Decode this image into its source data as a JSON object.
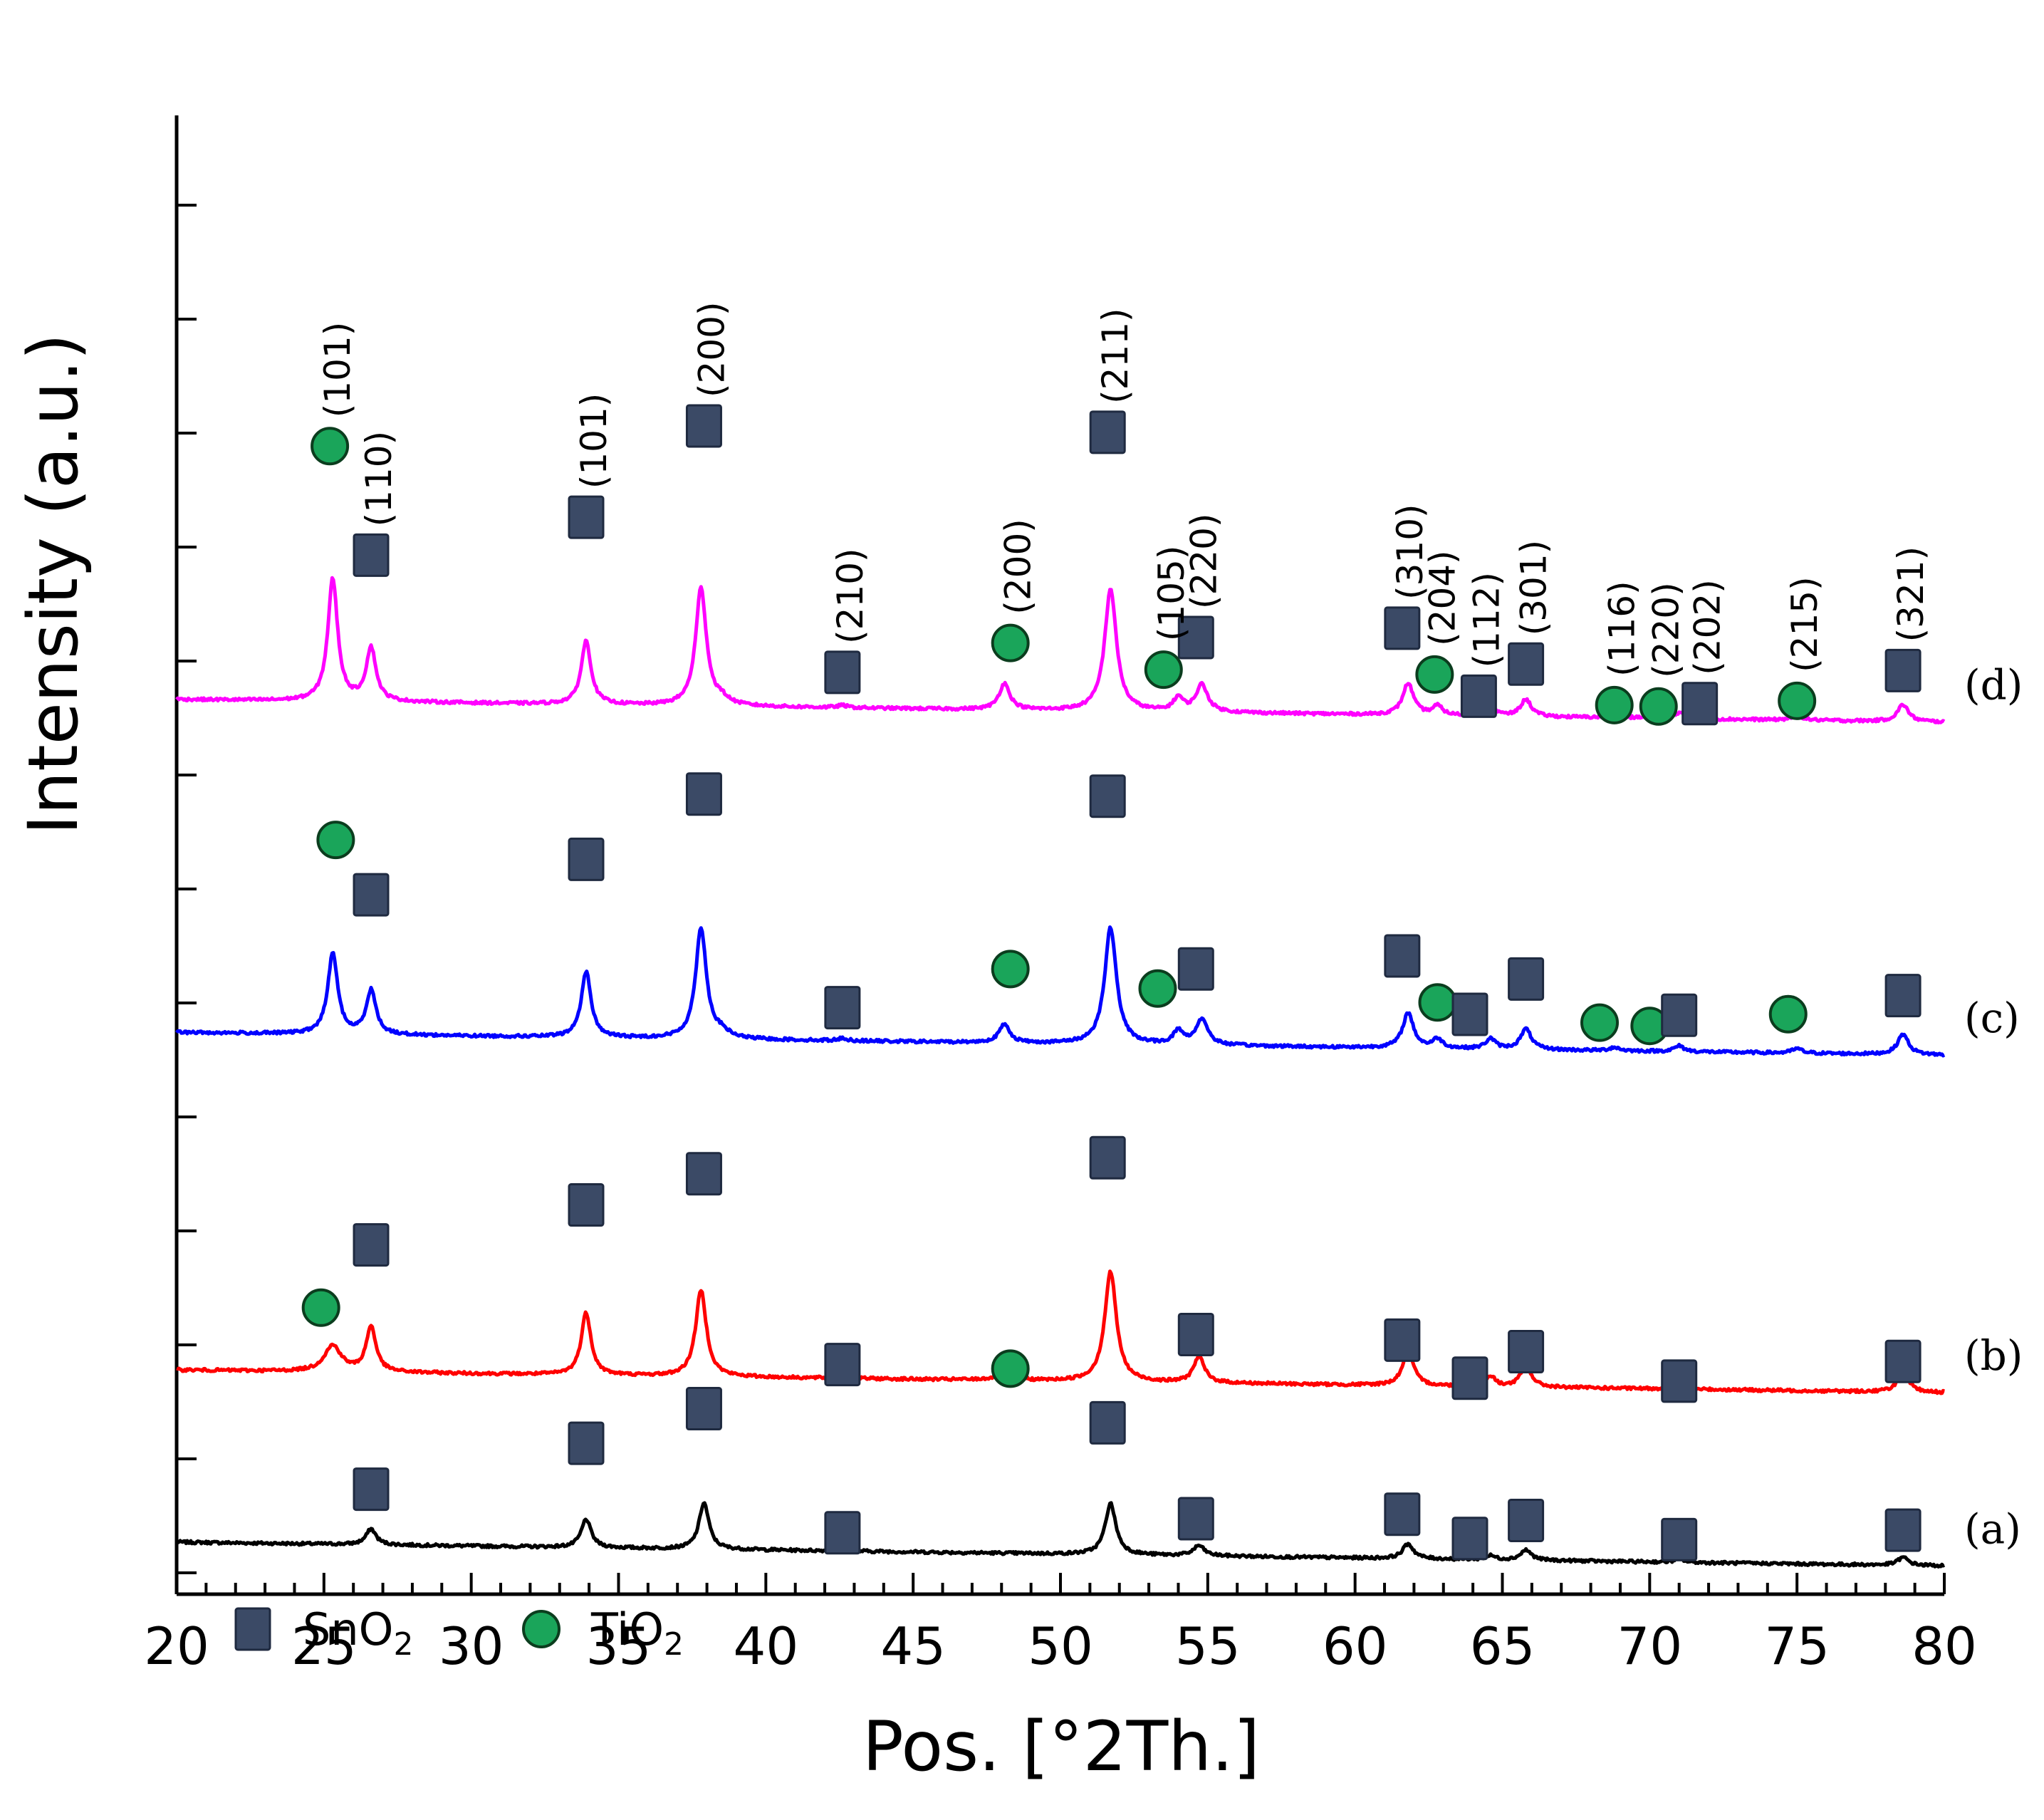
{
  "chart_data": {
    "type": "line",
    "title": "",
    "xlabel": "Pos. [°2Th.]",
    "ylabel": "Intensity (a.u.)",
    "xlim": [
      20,
      80
    ],
    "x_ticks": [
      "20",
      "25",
      "30",
      "35",
      "40",
      "45",
      "50",
      "55",
      "60",
      "65",
      "70",
      "75",
      "80"
    ],
    "y_ticks_major": 13,
    "series": [
      {
        "id": "a",
        "name": "(a)",
        "color": "#000000",
        "baseline_start": 0.3,
        "baseline_end": 0.09,
        "offset": 0.16,
        "peaks": [
          {
            "x": 26.6,
            "h": 0.14,
            "w": 0.2
          },
          {
            "x": 33.9,
            "h": 0.25,
            "w": 0.2
          },
          {
            "x": 37.9,
            "h": 0.41,
            "w": 0.2
          },
          {
            "x": 42.6,
            "h": 0.02,
            "w": 0.2
          },
          {
            "x": 51.7,
            "h": 0.45,
            "w": 0.22
          },
          {
            "x": 54.7,
            "h": 0.09,
            "w": 0.22
          },
          {
            "x": 61.8,
            "h": 0.13,
            "w": 0.22
          },
          {
            "x": 64.6,
            "h": 0.035,
            "w": 0.2
          },
          {
            "x": 65.8,
            "h": 0.09,
            "w": 0.22
          },
          {
            "x": 71.0,
            "h": 0.03,
            "w": 0.2
          },
          {
            "x": 78.6,
            "h": 0.07,
            "w": 0.22
          }
        ],
        "markers": [
          {
            "phase": "SnO2",
            "x": 26.6,
            "dy": 0.35
          },
          {
            "phase": "SnO2",
            "x": 33.9,
            "dy": 0.67
          },
          {
            "phase": "SnO2",
            "x": 37.9,
            "dy": 0.83
          },
          {
            "phase": "SnO2",
            "x": 42.6,
            "dy": 0.14
          },
          {
            "phase": "SnO2",
            "x": 51.6,
            "dy": 0.79
          },
          {
            "phase": "SnO2",
            "x": 54.6,
            "dy": 0.25
          },
          {
            "phase": "SnO2",
            "x": 61.6,
            "dy": 0.32
          },
          {
            "phase": "SnO2",
            "x": 63.9,
            "dy": 0.18
          },
          {
            "phase": "SnO2",
            "x": 65.8,
            "dy": 0.26
          },
          {
            "phase": "SnO2",
            "x": 71.0,
            "dy": 0.17
          },
          {
            "phase": "SnO2",
            "x": 78.6,
            "dy": 0.24
          }
        ]
      },
      {
        "id": "b",
        "name": "(b)",
        "color": "#ff0000",
        "baseline_start": 0.3,
        "baseline_end": 0.1,
        "offset": 1.68,
        "peaks": [
          {
            "x": 25.3,
            "h": 0.23,
            "w": 0.35
          },
          {
            "x": 26.6,
            "h": 0.4,
            "w": 0.2
          },
          {
            "x": 33.9,
            "h": 0.55,
            "w": 0.2
          },
          {
            "x": 37.8,
            "h": 0.76,
            "w": 0.22
          },
          {
            "x": 42.6,
            "h": 0.02,
            "w": 0.2
          },
          {
            "x": 48.1,
            "h": 0.05,
            "w": 0.4
          },
          {
            "x": 51.7,
            "h": 0.97,
            "w": 0.24
          },
          {
            "x": 54.7,
            "h": 0.23,
            "w": 0.22
          },
          {
            "x": 61.8,
            "h": 0.31,
            "w": 0.22
          },
          {
            "x": 64.6,
            "h": 0.09,
            "w": 0.2
          },
          {
            "x": 65.8,
            "h": 0.19,
            "w": 0.22
          },
          {
            "x": 71.0,
            "h": 0.05,
            "w": 0.2
          },
          {
            "x": 78.6,
            "h": 0.18,
            "w": 0.22
          }
        ],
        "markers": [
          {
            "phase": "TiO2",
            "x": 24.9,
            "dy": 0.46
          },
          {
            "phase": "SnO2",
            "x": 26.6,
            "dy": 0.71
          },
          {
            "phase": "SnO2",
            "x": 33.9,
            "dy": 0.95
          },
          {
            "phase": "SnO2",
            "x": 37.9,
            "dy": 1.16
          },
          {
            "phase": "SnO2",
            "x": 42.6,
            "dy": 0.1
          },
          {
            "phase": "TiO2",
            "x": 48.3,
            "dy": 0.06
          },
          {
            "phase": "SnO2",
            "x": 51.6,
            "dy": 1.15
          },
          {
            "phase": "SnO2",
            "x": 54.6,
            "dy": 0.23
          },
          {
            "phase": "SnO2",
            "x": 61.6,
            "dy": 0.23
          },
          {
            "phase": "SnO2",
            "x": 63.9,
            "dy": 0.06
          },
          {
            "phase": "SnO2",
            "x": 65.8,
            "dy": 0.12
          },
          {
            "phase": "SnO2",
            "x": 71.0,
            "dy": 0.02
          },
          {
            "phase": "SnO2",
            "x": 78.6,
            "dy": 0.09
          }
        ]
      },
      {
        "id": "c",
        "name": "(c)",
        "color": "#0000ff",
        "baseline_start": 0.3,
        "baseline_end": 0.1,
        "offset": 4.66,
        "peaks": [
          {
            "x": 25.3,
            "h": 0.72,
            "w": 0.2
          },
          {
            "x": 26.6,
            "h": 0.39,
            "w": 0.2
          },
          {
            "x": 33.9,
            "h": 0.58,
            "w": 0.2
          },
          {
            "x": 37.8,
            "h": 0.98,
            "w": 0.22
          },
          {
            "x": 38.5,
            "h": 0.05,
            "w": 0.3
          },
          {
            "x": 42.6,
            "h": 0.02,
            "w": 0.2
          },
          {
            "x": 48.1,
            "h": 0.16,
            "w": 0.22
          },
          {
            "x": 51.7,
            "h": 1.03,
            "w": 0.24
          },
          {
            "x": 54.0,
            "h": 0.12,
            "w": 0.2
          },
          {
            "x": 54.8,
            "h": 0.23,
            "w": 0.24
          },
          {
            "x": 61.8,
            "h": 0.31,
            "w": 0.22
          },
          {
            "x": 62.8,
            "h": 0.08,
            "w": 0.2
          },
          {
            "x": 64.6,
            "h": 0.09,
            "w": 0.2
          },
          {
            "x": 65.8,
            "h": 0.18,
            "w": 0.22
          },
          {
            "x": 68.8,
            "h": 0.03,
            "w": 0.2
          },
          {
            "x": 71.0,
            "h": 0.05,
            "w": 0.2
          },
          {
            "x": 75.0,
            "h": 0.04,
            "w": 0.2
          },
          {
            "x": 78.6,
            "h": 0.18,
            "w": 0.22
          }
        ],
        "markers": [
          {
            "phase": "TiO2",
            "x": 25.4,
            "dy": 1.13
          },
          {
            "phase": "SnO2",
            "x": 26.6,
            "dy": 0.83
          },
          {
            "phase": "SnO2",
            "x": 33.9,
            "dy": 0.99
          },
          {
            "phase": "SnO2",
            "x": 37.9,
            "dy": 1.34
          },
          {
            "phase": "SnO2",
            "x": 42.6,
            "dy": 0.27
          },
          {
            "phase": "TiO2",
            "x": 48.3,
            "dy": 0.56
          },
          {
            "phase": "SnO2",
            "x": 51.6,
            "dy": 1.31
          },
          {
            "phase": "TiO2",
            "x": 53.3,
            "dy": 0.46
          },
          {
            "phase": "SnO2",
            "x": 54.6,
            "dy": 0.52
          },
          {
            "phase": "SnO2",
            "x": 61.6,
            "dy": 0.64
          },
          {
            "phase": "TiO2",
            "x": 62.8,
            "dy": 0.31
          },
          {
            "phase": "SnO2",
            "x": 63.9,
            "dy": 0.29
          },
          {
            "phase": "SnO2",
            "x": 65.8,
            "dy": 0.44
          },
          {
            "phase": "TiO2",
            "x": 68.3,
            "dy": 0.24
          },
          {
            "phase": "TiO2",
            "x": 70.0,
            "dy": 0.22
          },
          {
            "phase": "SnO2",
            "x": 71.0,
            "dy": 0.27
          },
          {
            "phase": "TiO2",
            "x": 74.7,
            "dy": 0.33
          },
          {
            "phase": "SnO2",
            "x": 78.6,
            "dy": 0.34
          }
        ]
      },
      {
        "id": "d",
        "name": "(d)",
        "color": "#ff00ff",
        "baseline_start": 0.3,
        "baseline_end": 0.1,
        "offset": 7.6,
        "peaks": [
          {
            "x": 25.3,
            "h": 1.08,
            "w": 0.2
          },
          {
            "x": 26.6,
            "h": 0.47,
            "w": 0.2
          },
          {
            "x": 33.9,
            "h": 0.56,
            "w": 0.2
          },
          {
            "x": 37.8,
            "h": 1.04,
            "w": 0.22
          },
          {
            "x": 38.5,
            "h": 0.05,
            "w": 0.3
          },
          {
            "x": 42.6,
            "h": 0.02,
            "w": 0.2
          },
          {
            "x": 48.1,
            "h": 0.23,
            "w": 0.22
          },
          {
            "x": 51.7,
            "h": 1.08,
            "w": 0.24
          },
          {
            "x": 54.0,
            "h": 0.12,
            "w": 0.2
          },
          {
            "x": 54.8,
            "h": 0.24,
            "w": 0.24
          },
          {
            "x": 61.8,
            "h": 0.28,
            "w": 0.22
          },
          {
            "x": 62.8,
            "h": 0.08,
            "w": 0.2
          },
          {
            "x": 64.6,
            "h": 0.09,
            "w": 0.2
          },
          {
            "x": 65.8,
            "h": 0.15,
            "w": 0.22
          },
          {
            "x": 68.8,
            "h": 0.04,
            "w": 0.2
          },
          {
            "x": 70.3,
            "h": 0.03,
            "w": 0.2
          },
          {
            "x": 71.0,
            "h": 0.05,
            "w": 0.2
          },
          {
            "x": 75.0,
            "h": 0.05,
            "w": 0.2
          },
          {
            "x": 78.6,
            "h": 0.15,
            "w": 0.22
          }
        ],
        "markers": [
          {
            "phase": "TiO2",
            "x": 25.2,
            "dy": 1.38,
            "label": "(101)"
          },
          {
            "phase": "SnO2",
            "x": 26.6,
            "dy": 0.8,
            "label": "(110)"
          },
          {
            "phase": "SnO2",
            "x": 33.9,
            "dy": 1.09,
            "label": "(101)"
          },
          {
            "phase": "SnO2",
            "x": 37.9,
            "dy": 1.6,
            "label": "(200)"
          },
          {
            "phase": "SnO2",
            "x": 42.6,
            "dy": 0.29,
            "label": "(210)"
          },
          {
            "phase": "TiO2",
            "x": 48.3,
            "dy": 0.46,
            "label": "(200)"
          },
          {
            "phase": "SnO2",
            "x": 51.6,
            "dy": 1.54,
            "label": "(211)"
          },
          {
            "phase": "TiO2",
            "x": 53.5,
            "dy": 0.33,
            "label": "(105)"
          },
          {
            "phase": "SnO2",
            "x": 54.6,
            "dy": 0.5,
            "label": "(220)"
          },
          {
            "phase": "SnO2",
            "x": 61.6,
            "dy": 0.61,
            "label": "(310)"
          },
          {
            "phase": "TiO2",
            "x": 62.7,
            "dy": 0.28,
            "label": "(204)"
          },
          {
            "phase": "SnO2",
            "x": 64.2,
            "dy": 0.15,
            "label": "(112)"
          },
          {
            "phase": "SnO2",
            "x": 65.8,
            "dy": 0.31,
            "label": "(301)"
          },
          {
            "phase": "TiO2",
            "x": 68.8,
            "dy": 0.07,
            "label": "(116)"
          },
          {
            "phase": "TiO2",
            "x": 70.3,
            "dy": 0.07,
            "label": "(220)"
          },
          {
            "phase": "SnO2",
            "x": 71.7,
            "dy": 0.13,
            "label": "(202)"
          },
          {
            "phase": "TiO2",
            "x": 75.0,
            "dy": 0.12,
            "label": "(215)"
          },
          {
            "phase": "SnO2",
            "x": 78.6,
            "dy": 0.3,
            "label": "(321)"
          }
        ]
      }
    ],
    "legend": {
      "position": "bottom-left",
      "items": [
        {
          "phase": "SnO2",
          "label": "SnO",
          "sub": "2"
        },
        {
          "phase": "TiO2",
          "label": "TiO",
          "sub": "2"
        }
      ]
    }
  }
}
